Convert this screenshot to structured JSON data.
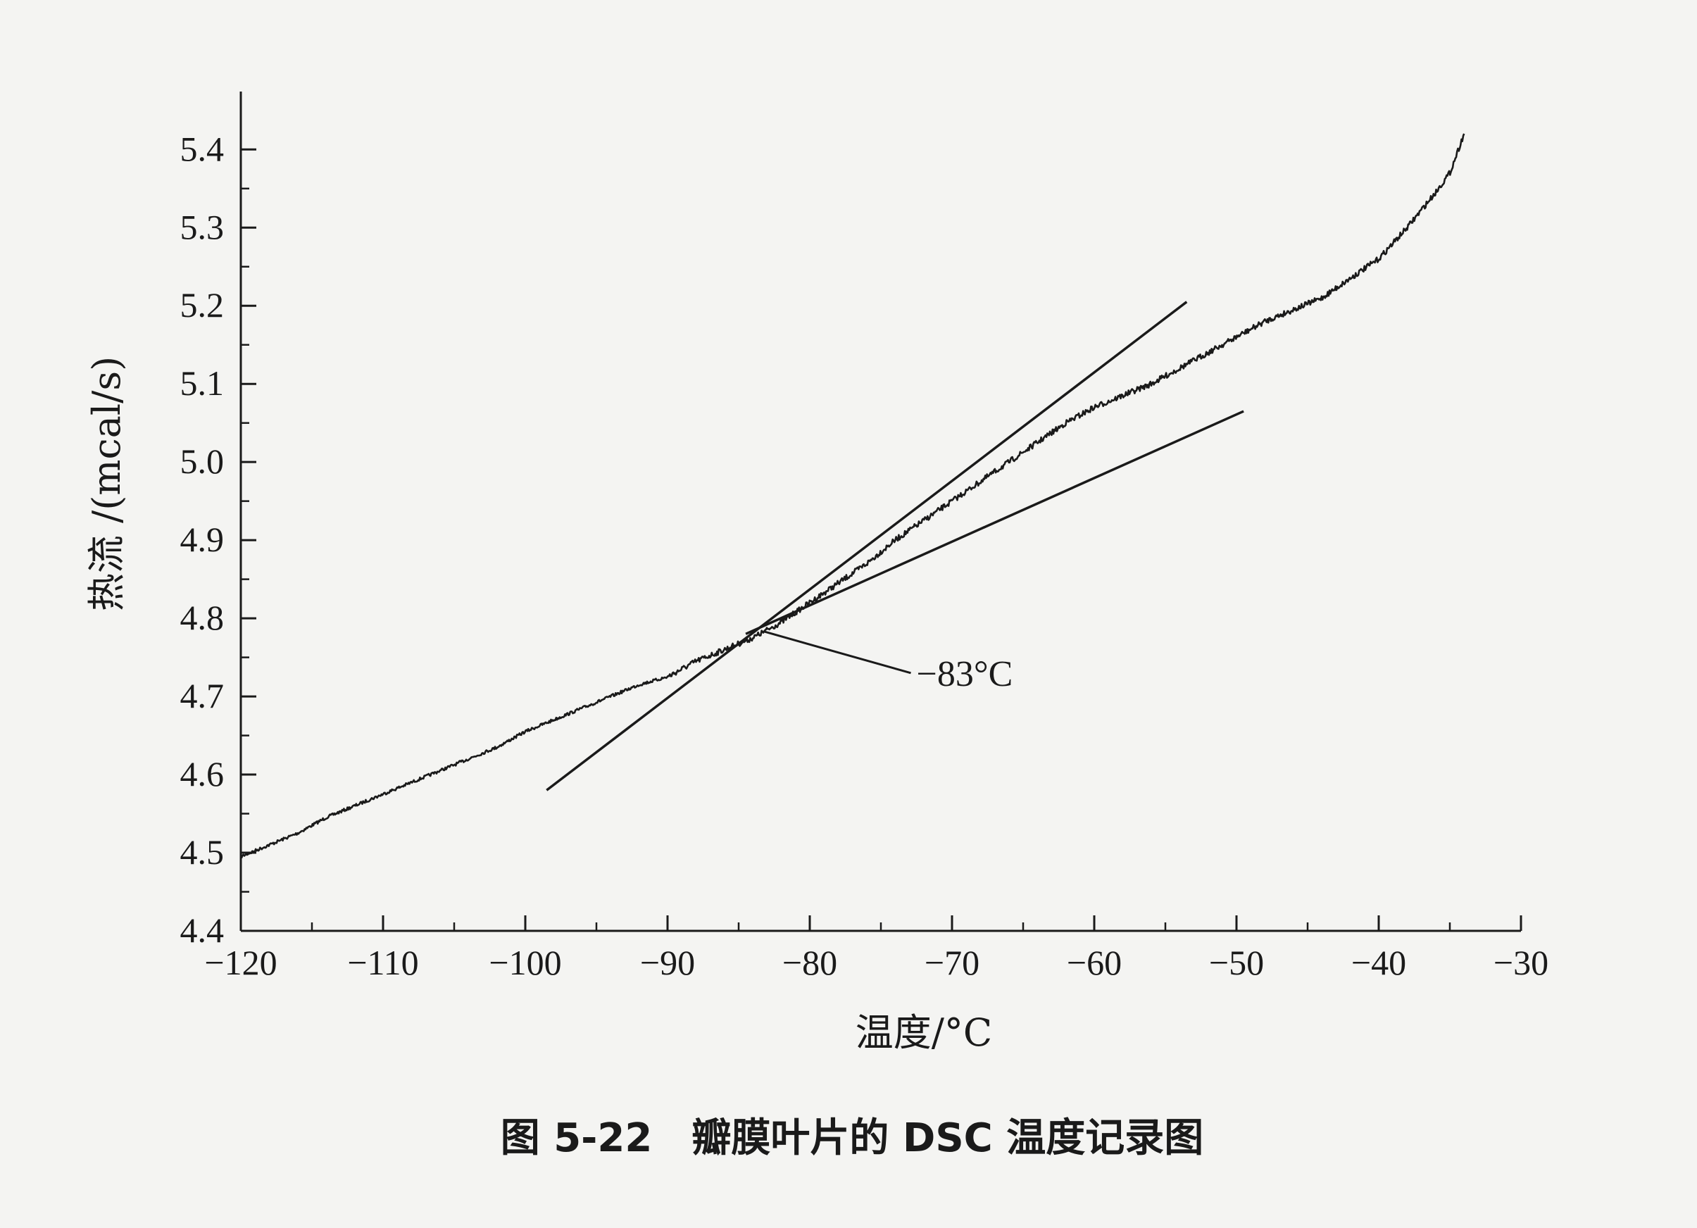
{
  "caption": "图 5-22　瓣膜叶片的 DSC 温度记录图",
  "chart_data": {
    "type": "line",
    "title": "",
    "xlabel": "温度/°C",
    "ylabel": "热流 /(mcal/s)",
    "xlim": [
      -120,
      -30
    ],
    "ylim": [
      4.4,
      5.43
    ],
    "xticks": [
      -120,
      -110,
      -100,
      -90,
      -80,
      -70,
      -60,
      -50,
      -40,
      -30
    ],
    "xtick_labels": [
      "−120",
      "−110",
      "−100",
      "−90",
      "−80",
      "−70",
      "−60",
      "−50",
      "−40",
      "−30"
    ],
    "yticks": [
      4.4,
      4.5,
      4.6,
      4.7,
      4.8,
      4.9,
      5.0,
      5.1,
      5.2,
      5.3,
      5.4
    ],
    "ytick_labels": [
      "4.4",
      "4.5",
      "4.6",
      "4.7",
      "4.8",
      "4.9",
      "5.0",
      "5.1",
      "5.2",
      "5.3",
      "5.4"
    ],
    "grid": false,
    "series": [
      {
        "x": [
          -120,
          -118,
          -116,
          -114,
          -112,
          -110,
          -108,
          -106,
          -104,
          -102,
          -100,
          -98,
          -96,
          -94,
          -92,
          -90,
          -88,
          -86,
          -84,
          -83,
          -82,
          -80,
          -78,
          -76,
          -74,
          -72,
          -70,
          -68,
          -66,
          -64,
          -62,
          -60,
          -58,
          -56,
          -54,
          -52,
          -50,
          -48,
          -46,
          -44,
          -42,
          -40,
          -38,
          -36,
          -35,
          -34
        ],
        "y": [
          4.495,
          4.51,
          4.525,
          4.545,
          4.56,
          4.575,
          4.59,
          4.605,
          4.62,
          4.635,
          4.655,
          4.67,
          4.685,
          4.7,
          4.715,
          4.725,
          4.745,
          4.76,
          4.775,
          4.785,
          4.795,
          4.82,
          4.845,
          4.87,
          4.9,
          4.925,
          4.95,
          4.975,
          5.0,
          5.025,
          5.05,
          5.07,
          5.085,
          5.1,
          5.12,
          5.14,
          5.16,
          5.18,
          5.195,
          5.21,
          5.235,
          5.26,
          5.3,
          5.345,
          5.37,
          5.42
        ]
      }
    ],
    "tangent_lines": [
      {
        "x": [
          -98.5,
          -53.5
        ],
        "y": [
          4.58,
          5.205
        ]
      },
      {
        "x": [
          -84.5,
          -49.5
        ],
        "y": [
          4.78,
          5.065
        ]
      }
    ],
    "annotation": {
      "text": "−83°C",
      "point": [
        -83.2,
        4.783
      ],
      "label_at": [
        -72.5,
        4.73
      ]
    }
  }
}
